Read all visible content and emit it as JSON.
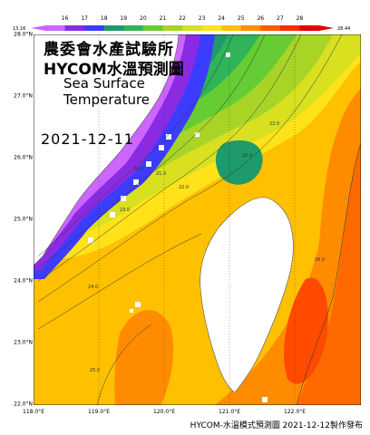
{
  "title": {
    "line1": "農委會水產試驗所",
    "line2": "HYCOM水溫預測圖",
    "line3": "Sea Surface",
    "line4": "Temperature"
  },
  "date": "2021-12-11",
  "footer": "HYCOM-水溫模式預測圖 2021-12-12製作發布",
  "colorbar": {
    "min_label": "13.16",
    "max_label": "28.44",
    "ticks": [
      "16",
      "17",
      "18",
      "19",
      "20",
      "21",
      "22",
      "23",
      "24",
      "25",
      "26",
      "27",
      "28"
    ],
    "colors": [
      "#cc66ff",
      "#8a2be2",
      "#3c3cff",
      "#1f9a6a",
      "#2fb45a",
      "#66cc33",
      "#a8d428",
      "#d8e020",
      "#ffe21a",
      "#ffc000",
      "#ff8c00",
      "#ff5a00",
      "#ff2a00",
      "#e60000"
    ]
  },
  "axes": {
    "lat_labels": [
      "28.0°N",
      "27.0°N",
      "26.0°N",
      "25.0°N",
      "24.0°N",
      "23.0°N",
      "22.0°N"
    ],
    "lon_labels": [
      "118.0°E",
      "119.0°E",
      "120.0°E",
      "121.0°E",
      "122.0°E"
    ]
  },
  "contour_labels": [
    "20.0",
    "21.0",
    "22.0",
    "23.0",
    "24.0",
    "25.0",
    "26.0"
  ],
  "colors": {
    "land": "#ffffff",
    "coast": "#555555"
  }
}
